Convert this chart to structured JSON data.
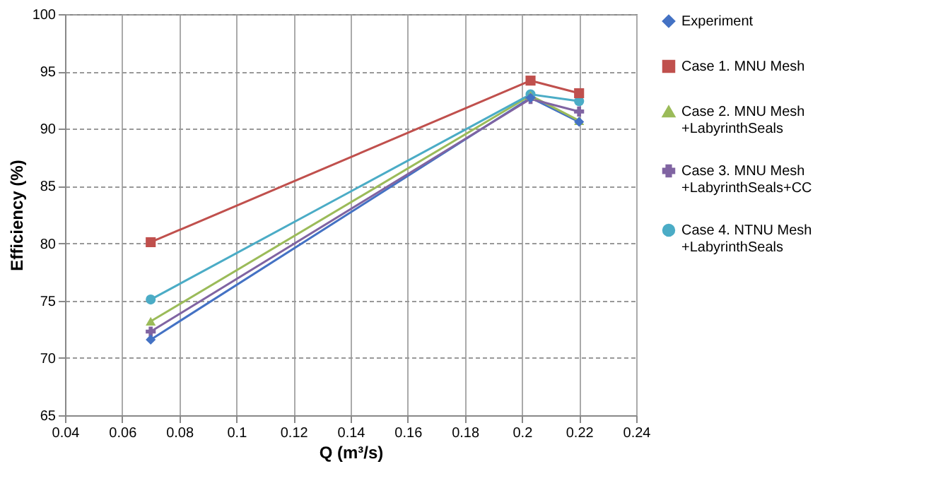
{
  "chart_data": {
    "type": "line",
    "xlabel": "Q (m³/s)",
    "ylabel": "Efficiency (%)",
    "x": [
      0.07,
      0.203,
      0.22
    ],
    "series": [
      {
        "name": "Experiment",
        "color": "#4472c4",
        "marker": "diamond",
        "values": [
          71.6,
          92.7,
          90.6
        ]
      },
      {
        "name": "Case 1. MNU Mesh",
        "color": "#c0504d",
        "marker": "square",
        "values": [
          80.1,
          94.2,
          93.1
        ]
      },
      {
        "name": "Case 2. MNU Mesh\n+LabyrinthSeals",
        "color": "#9bbb59",
        "marker": "triangle",
        "values": [
          73.2,
          92.9,
          90.7
        ]
      },
      {
        "name": "Case 3. MNU Mesh\n+LabyrinthSeals+CC",
        "color": "#8064a2",
        "marker": "cross",
        "values": [
          72.3,
          92.6,
          91.5
        ]
      },
      {
        "name": "Case 4. NTNU Mesh\n+LabyrinthSeals",
        "color": "#4bacc6",
        "marker": "circle",
        "values": [
          75.1,
          93.0,
          92.4
        ]
      }
    ],
    "xlim": [
      0.04,
      0.24
    ],
    "xticks": [
      0.04,
      0.06,
      0.08,
      0.1,
      0.12,
      0.14,
      0.16,
      0.18,
      0.2,
      0.22,
      0.24
    ],
    "ylim": [
      65,
      100
    ],
    "yticks": [
      65,
      70,
      75,
      80,
      85,
      90,
      95,
      100
    ],
    "grid": true,
    "legend": "right",
    "line_style": "solid"
  }
}
